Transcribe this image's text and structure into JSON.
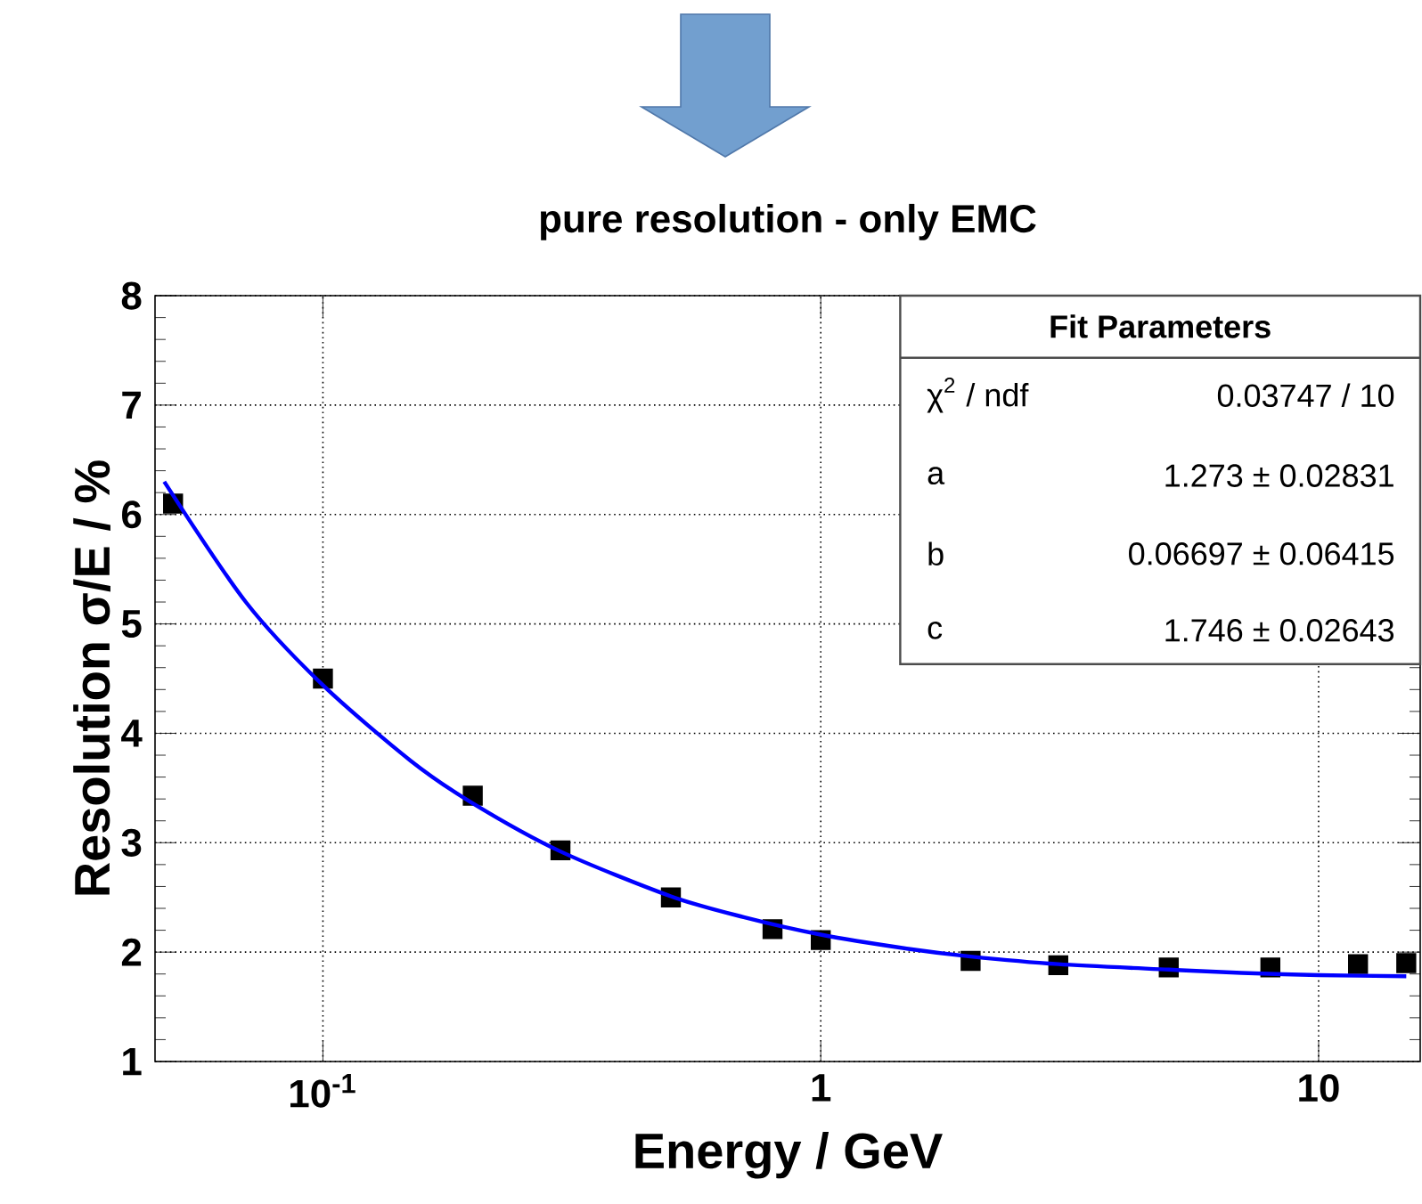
{
  "chart_data": {
    "type": "scatter",
    "title": "pure resolution - only EMC",
    "xlabel": "Energy / GeV",
    "ylabel": "Resolution σ/E / %",
    "log": "x",
    "xlim": [
      0.046,
      16
    ],
    "ylim": [
      1,
      8
    ],
    "xticks": [
      {
        "value": 0.1,
        "label": "10$^{-1}$"
      },
      1,
      10
    ],
    "yticks": [
      1,
      2,
      3,
      4,
      5,
      6,
      7,
      8
    ],
    "grid": true,
    "marker": "square",
    "annotations": [
      "Fit Parameters",
      "χ$^{2}$ / ndf",
      "0.03747 / 10",
      "a",
      "1.273 ± 0.02831",
      "b",
      "0.06697 ± 0.06415",
      "c",
      "1.746 ± 0.02643"
    ],
    "series": [
      {
        "color": "#000000",
        "x": [
          0.05,
          0.1,
          0.2,
          0.3,
          0.5,
          0.8,
          1,
          2,
          3,
          5,
          8,
          12,
          15
        ],
        "values": [
          6.1,
          4.5,
          3.43,
          2.93,
          2.5,
          2.21,
          2.11,
          1.92,
          1.88,
          1.86,
          1.86,
          1.89,
          1.9
        ]
      },
      {
        "type": "line",
        "marker": "none",
        "color": "#0000ff",
        "x": [
          0.048,
          0.07,
          0.1,
          0.15,
          0.2,
          0.3,
          0.5,
          0.7,
          1,
          1.5,
          2,
          3,
          5,
          7,
          10,
          15
        ],
        "values": [
          6.3,
          5.2,
          4.44,
          3.75,
          3.36,
          2.92,
          2.51,
          2.32,
          2.16,
          2.03,
          1.96,
          1.89,
          1.84,
          1.81,
          1.79,
          1.78
        ]
      }
    ]
  }
}
